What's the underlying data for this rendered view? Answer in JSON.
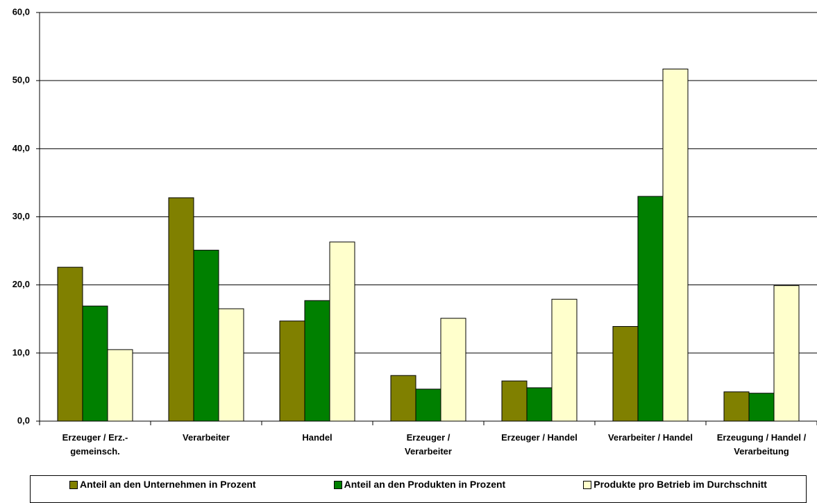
{
  "chart_data": {
    "type": "bar",
    "categories": [
      "Erzeuger / Erz.-\ngemeinsch.",
      "Verarbeiter",
      "Handel",
      "Erzeuger /\nVerarbeiter",
      "Erzeuger / Handel",
      "Verarbeiter / Handel",
      "Erzeugung / Handel /\nVerarbeitung"
    ],
    "series": [
      {
        "name": "Anteil an den Unternehmen in Prozent",
        "color": "#808000",
        "values": [
          22.6,
          32.8,
          14.7,
          6.7,
          5.9,
          13.9,
          4.3
        ]
      },
      {
        "name": "Anteil an den Produkten in Prozent",
        "color": "#008000",
        "values": [
          16.9,
          25.1,
          17.7,
          4.7,
          4.9,
          33.0,
          4.1
        ]
      },
      {
        "name": "Produkte pro Betrieb im Durchschnitt",
        "color": "#ffffcc",
        "values": [
          10.5,
          16.5,
          26.3,
          15.1,
          17.9,
          51.7,
          19.9
        ]
      }
    ],
    "ylim": [
      0,
      60
    ],
    "yticks": [
      {
        "value": 0,
        "label": "0,0"
      },
      {
        "value": 10,
        "label": "10,0"
      },
      {
        "value": 20,
        "label": "20,0"
      },
      {
        "value": 30,
        "label": "30,0"
      },
      {
        "value": 40,
        "label": "40,0"
      },
      {
        "value": 50,
        "label": "50,0"
      },
      {
        "value": 60,
        "label": "60,0"
      }
    ],
    "grid": true
  }
}
